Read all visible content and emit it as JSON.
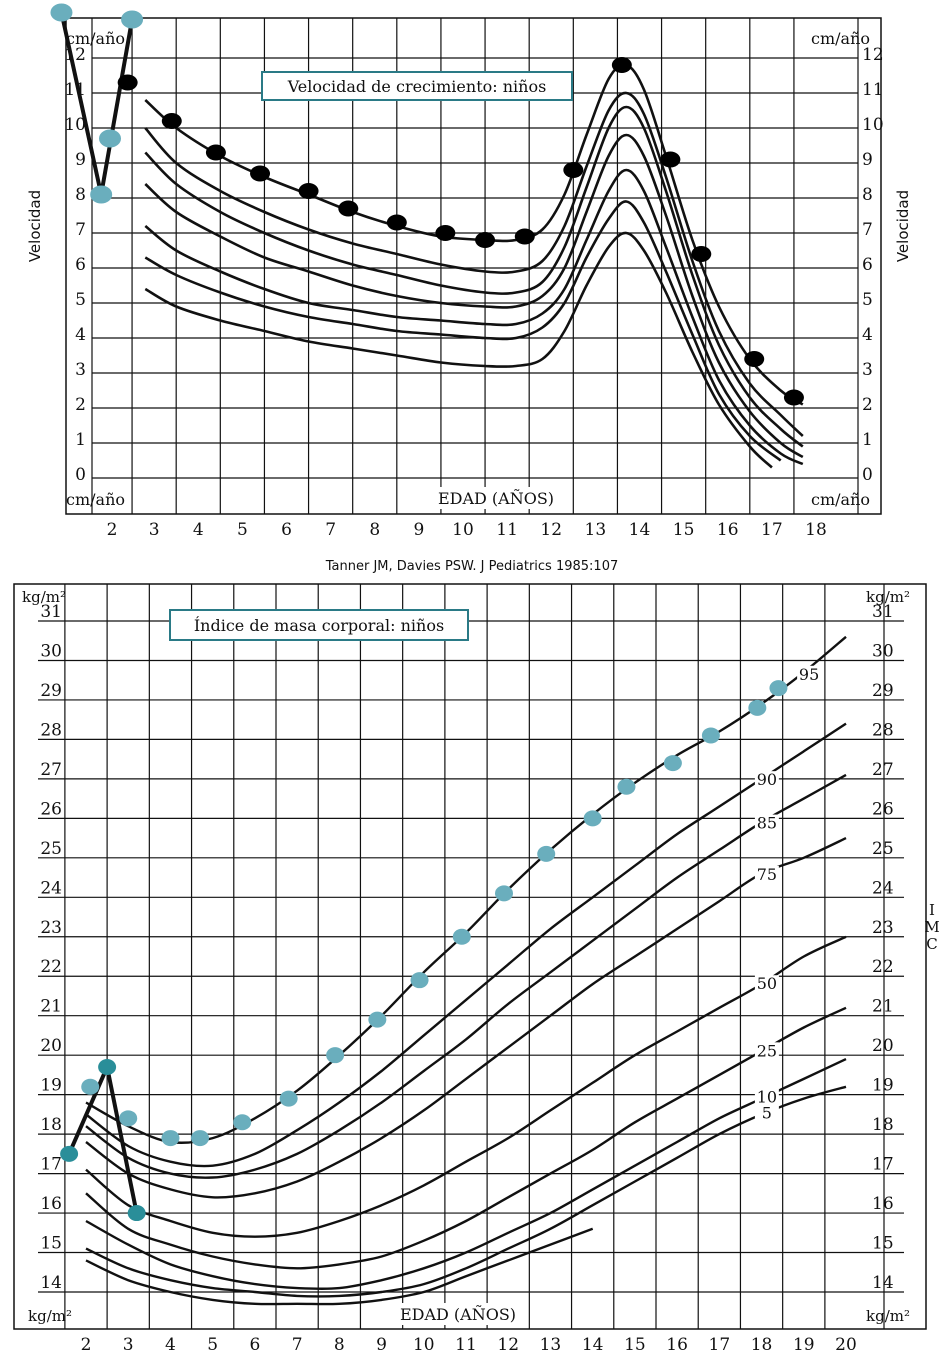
{
  "colors": {
    "grid": "#111111",
    "curve": "#111111",
    "teal": "#6aaebd",
    "box_border": "#2a7a86",
    "dot_black": "#000000"
  },
  "citation": "Tanner JM, Davies PSW. J Pediatrics 1985:107",
  "chart_data": [
    {
      "type": "line",
      "title": "Velocidad de crecimiento: niños",
      "xlabel": "EDAD (AÑOS)",
      "ylabel": "Velocidad",
      "y_unit_label": "cm/año",
      "xlim": [
        2,
        18
      ],
      "ylim": [
        0,
        12
      ],
      "x_ticks": [
        2,
        3,
        4,
        5,
        6,
        7,
        8,
        9,
        10,
        11,
        12,
        13,
        14,
        15,
        16,
        17,
        18
      ],
      "y_ticks": [
        0,
        1,
        2,
        3,
        4,
        5,
        6,
        7,
        8,
        9,
        10,
        11,
        12
      ],
      "grid": true,
      "curves": [
        {
          "x": [
            2.8,
            3.5,
            4.5,
            5.5,
            6.5,
            7.5,
            8.5,
            9.5,
            10.5,
            11.2,
            11.8,
            12.3,
            12.8,
            13.3,
            13.7,
            14.1,
            14.6,
            15.2,
            15.8,
            16.5,
            17.2,
            17.7
          ],
          "y": [
            10.8,
            10.0,
            9.2,
            8.6,
            8.1,
            7.6,
            7.2,
            6.9,
            6.8,
            6.8,
            7.1,
            8.1,
            9.8,
            11.4,
            11.8,
            11.1,
            9.2,
            6.8,
            4.9,
            3.4,
            2.5,
            2.1
          ]
        },
        {
          "x": [
            2.8,
            3.5,
            4.5,
            5.5,
            6.5,
            7.5,
            8.5,
            9.5,
            10.5,
            11.2,
            11.8,
            12.3,
            12.8,
            13.3,
            13.7,
            14.1,
            14.6,
            15.2,
            15.8,
            16.5,
            17.2,
            17.7
          ],
          "y": [
            10.0,
            9.0,
            8.2,
            7.6,
            7.1,
            6.7,
            6.4,
            6.1,
            5.9,
            5.9,
            6.2,
            7.2,
            8.9,
            10.5,
            11.0,
            10.4,
            8.6,
            6.2,
            4.2,
            2.7,
            1.8,
            1.2
          ]
        },
        {
          "x": [
            2.8,
            3.5,
            4.5,
            5.5,
            6.5,
            7.5,
            8.5,
            9.5,
            10.5,
            11.2,
            11.8,
            12.3,
            12.8,
            13.3,
            13.7,
            14.1,
            14.6,
            15.2,
            15.8,
            16.5,
            17.2,
            17.7
          ],
          "y": [
            9.3,
            8.4,
            7.6,
            7.0,
            6.5,
            6.1,
            5.8,
            5.5,
            5.3,
            5.3,
            5.6,
            6.6,
            8.3,
            10.0,
            10.6,
            10.0,
            8.2,
            5.8,
            3.8,
            2.3,
            1.4,
            0.9
          ]
        },
        {
          "x": [
            2.8,
            3.5,
            4.5,
            5.5,
            6.5,
            7.5,
            8.5,
            9.5,
            10.5,
            11.2,
            11.8,
            12.3,
            12.8,
            13.3,
            13.7,
            14.1,
            14.6,
            15.2,
            15.8,
            16.5,
            17.2,
            17.7
          ],
          "y": [
            8.4,
            7.6,
            6.9,
            6.3,
            5.9,
            5.5,
            5.2,
            5.0,
            4.9,
            4.9,
            5.2,
            6.0,
            7.6,
            9.2,
            9.8,
            9.2,
            7.5,
            5.2,
            3.3,
            1.9,
            1.0,
            0.6
          ]
        },
        {
          "x": [
            2.8,
            3.5,
            4.5,
            5.5,
            6.5,
            7.5,
            8.5,
            9.5,
            10.5,
            11.2,
            11.8,
            12.3,
            12.8,
            13.3,
            13.7,
            14.1,
            14.6,
            15.2,
            15.8,
            16.5,
            17.2,
            17.7
          ],
          "y": [
            7.2,
            6.5,
            5.9,
            5.4,
            5.0,
            4.8,
            4.6,
            4.5,
            4.4,
            4.4,
            4.7,
            5.4,
            6.8,
            8.2,
            8.8,
            8.2,
            6.6,
            4.6,
            2.8,
            1.5,
            0.7,
            0.4
          ]
        },
        {
          "x": [
            2.8,
            3.5,
            4.5,
            5.5,
            6.5,
            7.5,
            8.5,
            9.5,
            10.5,
            11.2,
            11.8,
            12.3,
            12.8,
            13.3,
            13.7,
            14.1,
            14.6,
            15.2,
            15.8,
            16.5,
            17.2
          ],
          "y": [
            6.3,
            5.8,
            5.3,
            4.9,
            4.6,
            4.4,
            4.2,
            4.1,
            4.0,
            4.0,
            4.3,
            5.0,
            6.3,
            7.4,
            7.9,
            7.3,
            5.9,
            4.1,
            2.4,
            1.2,
            0.5
          ]
        },
        {
          "x": [
            2.8,
            3.5,
            4.5,
            5.5,
            6.5,
            7.5,
            8.5,
            9.5,
            10.5,
            11.2,
            11.8,
            12.3,
            12.8,
            13.3,
            13.7,
            14.1,
            14.6,
            15.2,
            15.8,
            16.5,
            17.0
          ],
          "y": [
            5.4,
            4.9,
            4.5,
            4.2,
            3.9,
            3.7,
            3.5,
            3.3,
            3.2,
            3.2,
            3.4,
            4.2,
            5.5,
            6.6,
            7.0,
            6.5,
            5.3,
            3.6,
            2.1,
            0.9,
            0.3
          ]
        }
      ],
      "points_black": {
        "x": [
          2.4,
          3.4,
          4.4,
          5.4,
          6.5,
          7.4,
          8.5,
          9.6,
          10.5,
          11.4,
          12.5,
          13.6,
          14.7,
          15.4,
          16.6,
          17.5
        ],
        "y": [
          11.3,
          10.2,
          9.3,
          8.7,
          8.2,
          7.7,
          7.3,
          7.0,
          6.8,
          6.9,
          8.8,
          11.8,
          9.1,
          6.4,
          3.4,
          2.3
        ]
      },
      "points_teal": {
        "x": [
          0.9,
          1.8,
          2.0,
          2.5
        ],
        "y": [
          13.3,
          8.1,
          9.7,
          13.1
        ]
      },
      "connector": {
        "x": [
          0.9,
          1.8,
          2.5
        ],
        "y": [
          13.3,
          8.1,
          13.1
        ]
      }
    },
    {
      "type": "line",
      "title": "Índice de masa corporal: niños",
      "xlabel": "EDAD (AÑOS)",
      "ylabel": "I M C",
      "y_unit_label": "kg/m²",
      "xlim": [
        1.5,
        20
      ],
      "ylim": [
        13.5,
        31.5
      ],
      "x_ticks": [
        2,
        3,
        4,
        5,
        6,
        7,
        8,
        9,
        10,
        11,
        12,
        13,
        14,
        15,
        16,
        17,
        18,
        19,
        20
      ],
      "y_ticks": [
        14,
        15,
        16,
        17,
        18,
        19,
        20,
        21,
        22,
        23,
        24,
        25,
        26,
        27,
        28,
        29,
        30,
        31
      ],
      "grid": true,
      "percentiles": [
        {
          "name": "95",
          "x": [
            2,
            3,
            4,
            5,
            6,
            7,
            8,
            9,
            10,
            11,
            12,
            13,
            14,
            15,
            16,
            17,
            18,
            19,
            20
          ],
          "y": [
            18.8,
            18.2,
            17.8,
            17.9,
            18.4,
            19.1,
            20.0,
            21.0,
            22.1,
            23.1,
            24.2,
            25.2,
            26.1,
            26.9,
            27.6,
            28.2,
            28.9,
            29.7,
            30.6
          ]
        },
        {
          "name": "90",
          "x": [
            2,
            3,
            4,
            5,
            6,
            7,
            8,
            9,
            10,
            11,
            12,
            13,
            14,
            15,
            16,
            17,
            18,
            19,
            20
          ],
          "y": [
            18.5,
            17.7,
            17.3,
            17.2,
            17.5,
            18.1,
            18.8,
            19.6,
            20.5,
            21.4,
            22.3,
            23.2,
            24.0,
            24.8,
            25.6,
            26.3,
            27.0,
            27.7,
            28.4
          ]
        },
        {
          "name": "85",
          "x": [
            2,
            3,
            4,
            5,
            6,
            7,
            8,
            9,
            10,
            11,
            12,
            13,
            14,
            15,
            16,
            17,
            18,
            19,
            20
          ],
          "y": [
            18.2,
            17.4,
            17.0,
            16.9,
            17.1,
            17.5,
            18.1,
            18.8,
            19.6,
            20.4,
            21.3,
            22.1,
            22.9,
            23.7,
            24.5,
            25.2,
            25.9,
            26.5,
            27.1
          ]
        },
        {
          "name": "75",
          "x": [
            2,
            3,
            4,
            5,
            6,
            7,
            8,
            9,
            10,
            11,
            12,
            13,
            14,
            15,
            16,
            17,
            18,
            19,
            20
          ],
          "y": [
            17.8,
            17.0,
            16.6,
            16.4,
            16.5,
            16.8,
            17.3,
            17.9,
            18.6,
            19.4,
            20.2,
            21.0,
            21.8,
            22.5,
            23.2,
            23.9,
            24.6,
            25.0,
            25.5
          ]
        },
        {
          "name": "50",
          "x": [
            2,
            3,
            4,
            5,
            6,
            7,
            8,
            9,
            10,
            11,
            12,
            13,
            14,
            15,
            16,
            17,
            18,
            19,
            20
          ],
          "y": [
            17.1,
            16.2,
            15.8,
            15.5,
            15.4,
            15.5,
            15.8,
            16.2,
            16.7,
            17.3,
            17.9,
            18.6,
            19.3,
            20.0,
            20.6,
            21.2,
            21.8,
            22.5,
            23.0
          ]
        },
        {
          "name": "25",
          "x": [
            2,
            3,
            4,
            5,
            6,
            7,
            8,
            9,
            10,
            11,
            12,
            13,
            14,
            15,
            16,
            17,
            18,
            19,
            20
          ],
          "y": [
            16.5,
            15.6,
            15.2,
            14.9,
            14.7,
            14.6,
            14.7,
            14.9,
            15.3,
            15.8,
            16.4,
            17.0,
            17.6,
            18.3,
            18.9,
            19.5,
            20.1,
            20.7,
            21.2
          ]
        },
        {
          "name": "10",
          "x": [
            2,
            3,
            4,
            5,
            6,
            7,
            8,
            9,
            10,
            11,
            12,
            13,
            14,
            15,
            16,
            17,
            18,
            19,
            20
          ],
          "y": [
            15.8,
            15.2,
            14.7,
            14.4,
            14.2,
            14.1,
            14.1,
            14.3,
            14.6,
            15.0,
            15.5,
            16.0,
            16.6,
            17.2,
            17.8,
            18.4,
            18.9,
            19.4,
            19.9
          ]
        },
        {
          "name": "5",
          "x": [
            2,
            3,
            4,
            5,
            6,
            7,
            8,
            9,
            10,
            11,
            12,
            13,
            14,
            15,
            16,
            17,
            18,
            19,
            20
          ],
          "y": [
            15.1,
            14.6,
            14.3,
            14.1,
            14.0,
            13.9,
            13.9,
            14.0,
            14.2,
            14.6,
            15.1,
            15.6,
            16.2,
            16.8,
            17.4,
            18.0,
            18.5,
            18.9,
            19.2
          ]
        },
        {
          "name": "",
          "x": [
            2,
            3,
            4,
            5,
            6,
            7,
            8,
            9,
            10,
            11,
            12,
            13,
            14
          ],
          "y": [
            14.8,
            14.3,
            14.0,
            13.8,
            13.7,
            13.7,
            13.7,
            13.8,
            14.0,
            14.4,
            14.8,
            15.2,
            15.6
          ]
        }
      ],
      "points_teal": {
        "x": [
          2.1,
          3.0,
          4.0,
          4.7,
          5.7,
          6.8,
          7.9,
          8.9,
          9.9,
          10.9,
          11.9,
          12.9,
          14.0,
          14.8,
          15.9,
          16.8,
          17.9,
          18.4
        ],
        "y": [
          19.2,
          18.4,
          17.9,
          17.9,
          18.3,
          18.9,
          20.0,
          20.9,
          21.9,
          23.0,
          24.1,
          25.1,
          26.0,
          26.8,
          27.4,
          28.1,
          28.8,
          29.3
        ]
      },
      "points_teal_dark": {
        "x": [
          1.6,
          2.5,
          3.2
        ],
        "y": [
          17.5,
          19.7,
          16.0
        ]
      },
      "connector": {
        "x": [
          1.6,
          2.5,
          3.2
        ],
        "y": [
          17.5,
          19.7,
          16.0
        ]
      }
    }
  ]
}
